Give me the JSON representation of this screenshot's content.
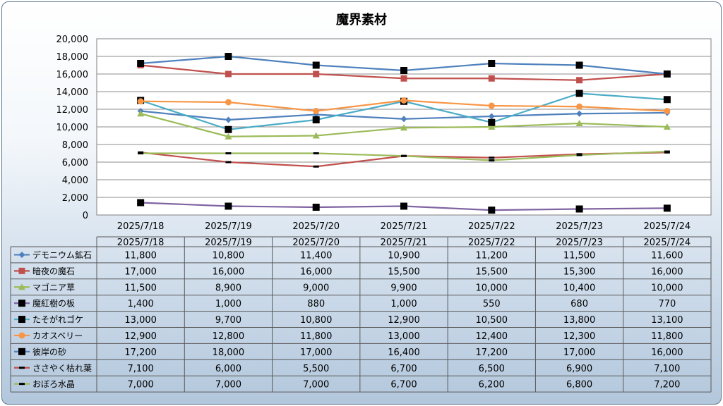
{
  "chart_data": {
    "type": "line",
    "title": "魔界素材",
    "xlabel": "",
    "ylabel": "",
    "ylim": [
      0,
      20000
    ],
    "ytick_step": 2000,
    "ytick_labels": [
      "0",
      "2,000",
      "4,000",
      "6,000",
      "8,000",
      "10,000",
      "12,000",
      "14,000",
      "16,000",
      "18,000",
      "20,000"
    ],
    "grid": true,
    "legend": "data-table",
    "categories": [
      "2025/7/18",
      "2025/7/19",
      "2025/7/20",
      "2025/7/21",
      "2025/7/22",
      "2025/7/23",
      "2025/7/24"
    ],
    "series": [
      {
        "name": "デモニウム鉱石",
        "color": "#4f81bd",
        "marker": "diamond",
        "values": [
          11800,
          10800,
          11400,
          10900,
          11200,
          11500,
          11600
        ]
      },
      {
        "name": "暗夜の魔石",
        "color": "#c0504d",
        "marker": "square",
        "values": [
          17000,
          16000,
          16000,
          15500,
          15500,
          15300,
          16000
        ]
      },
      {
        "name": "マゴニア草",
        "color": "#9bbb59",
        "marker": "triangle",
        "values": [
          11500,
          8900,
          9000,
          9900,
          10000,
          10400,
          10000
        ]
      },
      {
        "name": "魔紅樹の板",
        "color": "#8064a2",
        "marker": "square-black",
        "values": [
          1400,
          1000,
          880,
          1000,
          550,
          680,
          770
        ]
      },
      {
        "name": "たそがれゴケ",
        "color": "#4bacc6",
        "marker": "square-black",
        "values": [
          13000,
          9700,
          10800,
          12900,
          10500,
          13800,
          13100
        ]
      },
      {
        "name": "カオスベリー",
        "color": "#f79646",
        "marker": "circle",
        "values": [
          12900,
          12800,
          11800,
          13000,
          12400,
          12300,
          11800
        ]
      },
      {
        "name": "彼岸の砂",
        "color": "#4f81bd",
        "marker": "square-black",
        "values": [
          17200,
          18000,
          17000,
          16400,
          17200,
          17000,
          16000
        ]
      },
      {
        "name": "ささやく枯れ葉",
        "color": "#c0504d",
        "marker": "dash-black",
        "values": [
          7100,
          6000,
          5500,
          6700,
          6500,
          6900,
          7100
        ]
      },
      {
        "name": "おぼろ水晶",
        "color": "#9bbb59",
        "marker": "dash-black",
        "values": [
          7000,
          7000,
          7000,
          6700,
          6200,
          6800,
          7200
        ]
      }
    ]
  }
}
